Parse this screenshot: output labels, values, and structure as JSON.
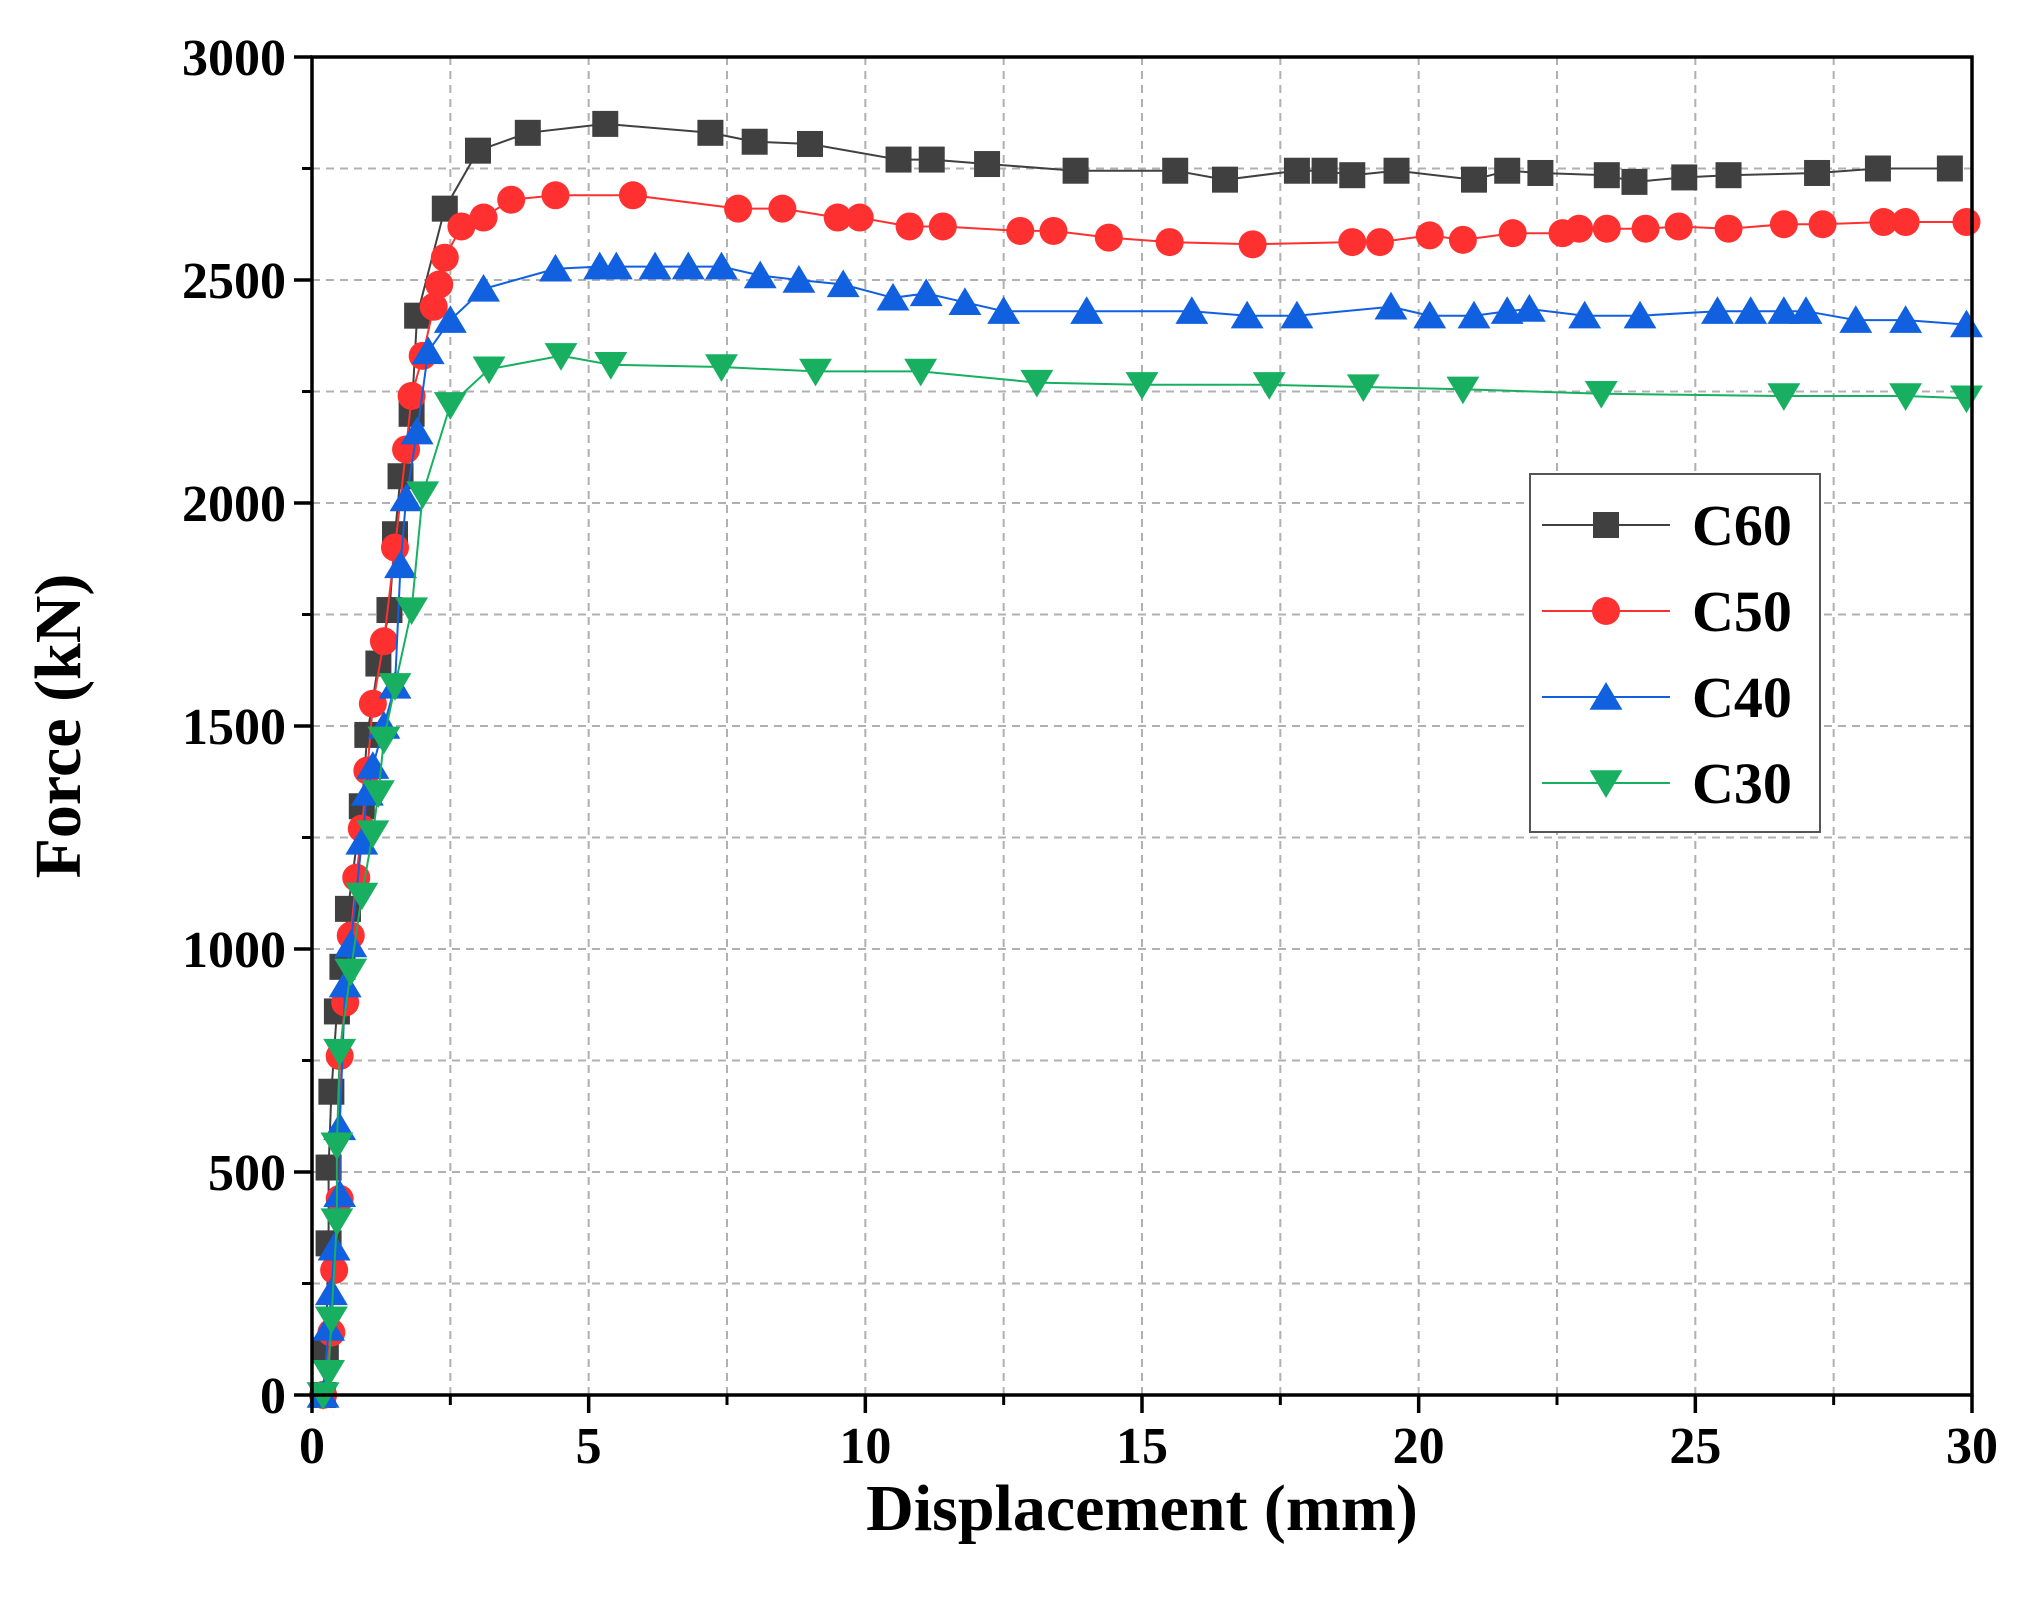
{
  "chart_data": {
    "type": "line",
    "title": "",
    "xlabel": "Displacement (mm)",
    "ylabel": "Force (kN)",
    "xlim": [
      0,
      30
    ],
    "ylim": [
      0,
      3000
    ],
    "xticks": [
      0,
      5,
      10,
      15,
      20,
      25,
      30
    ],
    "yticks": [
      0,
      500,
      1000,
      1500,
      2000,
      2500,
      3000
    ],
    "grid": true,
    "legend_position": "right-middle",
    "series": [
      {
        "name": "C60",
        "color": "#404040",
        "marker": "square",
        "points": [
          [
            0.2,
            0
          ],
          [
            0.25,
            100
          ],
          [
            0.3,
            340
          ],
          [
            0.3,
            510
          ],
          [
            0.35,
            680
          ],
          [
            0.45,
            860
          ],
          [
            0.55,
            960
          ],
          [
            0.65,
            1090
          ],
          [
            0.9,
            1320
          ],
          [
            1.0,
            1480
          ],
          [
            1.2,
            1640
          ],
          [
            1.4,
            1760
          ],
          [
            1.5,
            1930
          ],
          [
            1.6,
            2060
          ],
          [
            1.8,
            2200
          ],
          [
            1.9,
            2420
          ],
          [
            2.4,
            2660
          ],
          [
            3.0,
            2790
          ],
          [
            3.9,
            2830
          ],
          [
            5.3,
            2850
          ],
          [
            7.2,
            2830
          ],
          [
            8.0,
            2810
          ],
          [
            9.0,
            2805
          ],
          [
            10.6,
            2770
          ],
          [
            11.2,
            2770
          ],
          [
            12.2,
            2760
          ],
          [
            13.8,
            2745
          ],
          [
            15.6,
            2745
          ],
          [
            16.5,
            2725
          ],
          [
            17.8,
            2745
          ],
          [
            18.3,
            2745
          ],
          [
            18.8,
            2735
          ],
          [
            19.6,
            2745
          ],
          [
            21.0,
            2725
          ],
          [
            21.6,
            2745
          ],
          [
            22.2,
            2740
          ],
          [
            23.4,
            2735
          ],
          [
            23.9,
            2720
          ],
          [
            24.8,
            2730
          ],
          [
            25.6,
            2735
          ],
          [
            27.2,
            2740
          ],
          [
            28.3,
            2750
          ],
          [
            29.6,
            2750
          ]
        ]
      },
      {
        "name": "C50",
        "color": "#ff3030",
        "marker": "circle",
        "points": [
          [
            0.2,
            0
          ],
          [
            0.35,
            140
          ],
          [
            0.4,
            280
          ],
          [
            0.5,
            440
          ],
          [
            0.5,
            760
          ],
          [
            0.6,
            880
          ],
          [
            0.7,
            1030
          ],
          [
            0.8,
            1160
          ],
          [
            0.9,
            1270
          ],
          [
            1.0,
            1400
          ],
          [
            1.1,
            1550
          ],
          [
            1.3,
            1690
          ],
          [
            1.5,
            1900
          ],
          [
            1.7,
            2120
          ],
          [
            1.8,
            2240
          ],
          [
            2.0,
            2330
          ],
          [
            2.2,
            2440
          ],
          [
            2.3,
            2490
          ],
          [
            2.4,
            2550
          ],
          [
            2.7,
            2620
          ],
          [
            3.1,
            2640
          ],
          [
            3.6,
            2680
          ],
          [
            4.4,
            2690
          ],
          [
            5.8,
            2690
          ],
          [
            7.7,
            2660
          ],
          [
            8.5,
            2660
          ],
          [
            9.5,
            2640
          ],
          [
            9.9,
            2640
          ],
          [
            10.8,
            2620
          ],
          [
            11.4,
            2620
          ],
          [
            12.8,
            2610
          ],
          [
            13.4,
            2610
          ],
          [
            14.4,
            2595
          ],
          [
            15.5,
            2585
          ],
          [
            17.0,
            2580
          ],
          [
            18.8,
            2585
          ],
          [
            19.3,
            2585
          ],
          [
            20.2,
            2600
          ],
          [
            20.8,
            2590
          ],
          [
            21.7,
            2605
          ],
          [
            22.6,
            2605
          ],
          [
            22.9,
            2615
          ],
          [
            23.4,
            2615
          ],
          [
            24.1,
            2615
          ],
          [
            24.7,
            2620
          ],
          [
            25.6,
            2615
          ],
          [
            26.6,
            2625
          ],
          [
            27.3,
            2625
          ],
          [
            28.4,
            2630
          ],
          [
            28.8,
            2630
          ],
          [
            29.9,
            2630
          ]
        ]
      },
      {
        "name": "C40",
        "color": "#1060e0",
        "marker": "triangle-up",
        "points": [
          [
            0.2,
            0
          ],
          [
            0.3,
            150
          ],
          [
            0.35,
            230
          ],
          [
            0.4,
            330
          ],
          [
            0.5,
            450
          ],
          [
            0.5,
            600
          ],
          [
            0.6,
            920
          ],
          [
            0.7,
            1010
          ],
          [
            0.9,
            1240
          ],
          [
            1.0,
            1350
          ],
          [
            1.1,
            1410
          ],
          [
            1.3,
            1500
          ],
          [
            1.5,
            1590
          ],
          [
            1.6,
            1860
          ],
          [
            1.7,
            2010
          ],
          [
            1.9,
            2160
          ],
          [
            2.1,
            2340
          ],
          [
            2.5,
            2410
          ],
          [
            3.1,
            2480
          ],
          [
            4.4,
            2525
          ],
          [
            5.2,
            2530
          ],
          [
            5.5,
            2530
          ],
          [
            6.2,
            2530
          ],
          [
            6.8,
            2530
          ],
          [
            7.4,
            2530
          ],
          [
            8.1,
            2510
          ],
          [
            8.8,
            2500
          ],
          [
            9.6,
            2490
          ],
          [
            10.5,
            2460
          ],
          [
            11.1,
            2470
          ],
          [
            11.8,
            2450
          ],
          [
            12.5,
            2430
          ],
          [
            14.0,
            2430
          ],
          [
            15.9,
            2430
          ],
          [
            16.9,
            2420
          ],
          [
            17.8,
            2420
          ],
          [
            19.5,
            2440
          ],
          [
            20.2,
            2420
          ],
          [
            21.0,
            2420
          ],
          [
            21.6,
            2430
          ],
          [
            22.0,
            2435
          ],
          [
            23.0,
            2420
          ],
          [
            24.0,
            2420
          ],
          [
            25.4,
            2430
          ],
          [
            26.0,
            2430
          ],
          [
            26.6,
            2430
          ],
          [
            27.0,
            2430
          ],
          [
            27.9,
            2410
          ],
          [
            28.8,
            2410
          ],
          [
            29.9,
            2400
          ]
        ]
      },
      {
        "name": "C30",
        "color": "#18b060",
        "marker": "triangle-down",
        "points": [
          [
            0.2,
            0
          ],
          [
            0.3,
            50
          ],
          [
            0.35,
            170
          ],
          [
            0.45,
            390
          ],
          [
            0.45,
            560
          ],
          [
            0.5,
            770
          ],
          [
            0.7,
            950
          ],
          [
            0.9,
            1120
          ],
          [
            1.1,
            1260
          ],
          [
            1.2,
            1350
          ],
          [
            1.3,
            1470
          ],
          [
            1.5,
            1590
          ],
          [
            1.8,
            1760
          ],
          [
            2.0,
            2020
          ],
          [
            2.5,
            2220
          ],
          [
            3.2,
            2300
          ],
          [
            4.5,
            2330
          ],
          [
            5.4,
            2310
          ],
          [
            7.4,
            2305
          ],
          [
            9.1,
            2295
          ],
          [
            11.0,
            2295
          ],
          [
            13.1,
            2270
          ],
          [
            15.0,
            2265
          ],
          [
            17.3,
            2265
          ],
          [
            19.0,
            2260
          ],
          [
            20.8,
            2255
          ],
          [
            23.3,
            2245
          ],
          [
            26.6,
            2240
          ],
          [
            28.8,
            2240
          ],
          [
            29.9,
            2235
          ]
        ]
      }
    ]
  }
}
